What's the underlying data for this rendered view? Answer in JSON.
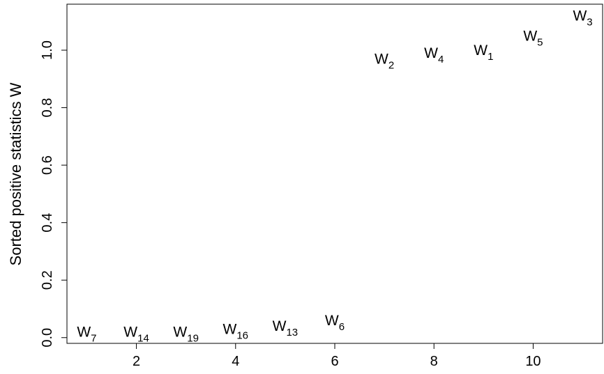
{
  "chart_data": {
    "type": "scatter",
    "title": "",
    "xlabel": "",
    "ylabel": "Sorted positive statistics W",
    "xlim": [
      0.6,
      11.4
    ],
    "ylim": [
      -0.02,
      1.16
    ],
    "x_ticks": [
      2,
      4,
      6,
      8,
      10
    ],
    "y_ticks": [
      0.0,
      0.2,
      0.4,
      0.6,
      0.8,
      1.0
    ],
    "x_tick_labels": [
      "2",
      "4",
      "6",
      "8",
      "10"
    ],
    "y_tick_labels": [
      "0.0",
      "0.2",
      "0.4",
      "0.6",
      "0.8",
      "1.0"
    ],
    "grid": false,
    "marker": "text-label",
    "points": [
      {
        "x": 1,
        "y": 0.02,
        "base": "W",
        "sub": "7"
      },
      {
        "x": 2,
        "y": 0.02,
        "base": "W",
        "sub": "14"
      },
      {
        "x": 3,
        "y": 0.02,
        "base": "W",
        "sub": "19"
      },
      {
        "x": 4,
        "y": 0.03,
        "base": "W",
        "sub": "16"
      },
      {
        "x": 5,
        "y": 0.04,
        "base": "W",
        "sub": "13"
      },
      {
        "x": 6,
        "y": 0.06,
        "base": "W",
        "sub": "6"
      },
      {
        "x": 7,
        "y": 0.97,
        "base": "W",
        "sub": "2"
      },
      {
        "x": 8,
        "y": 0.99,
        "base": "W",
        "sub": "4"
      },
      {
        "x": 9,
        "y": 1.0,
        "base": "W",
        "sub": "1"
      },
      {
        "x": 10,
        "y": 1.05,
        "base": "W",
        "sub": "5"
      },
      {
        "x": 11,
        "y": 1.12,
        "base": "W",
        "sub": "3"
      }
    ]
  }
}
